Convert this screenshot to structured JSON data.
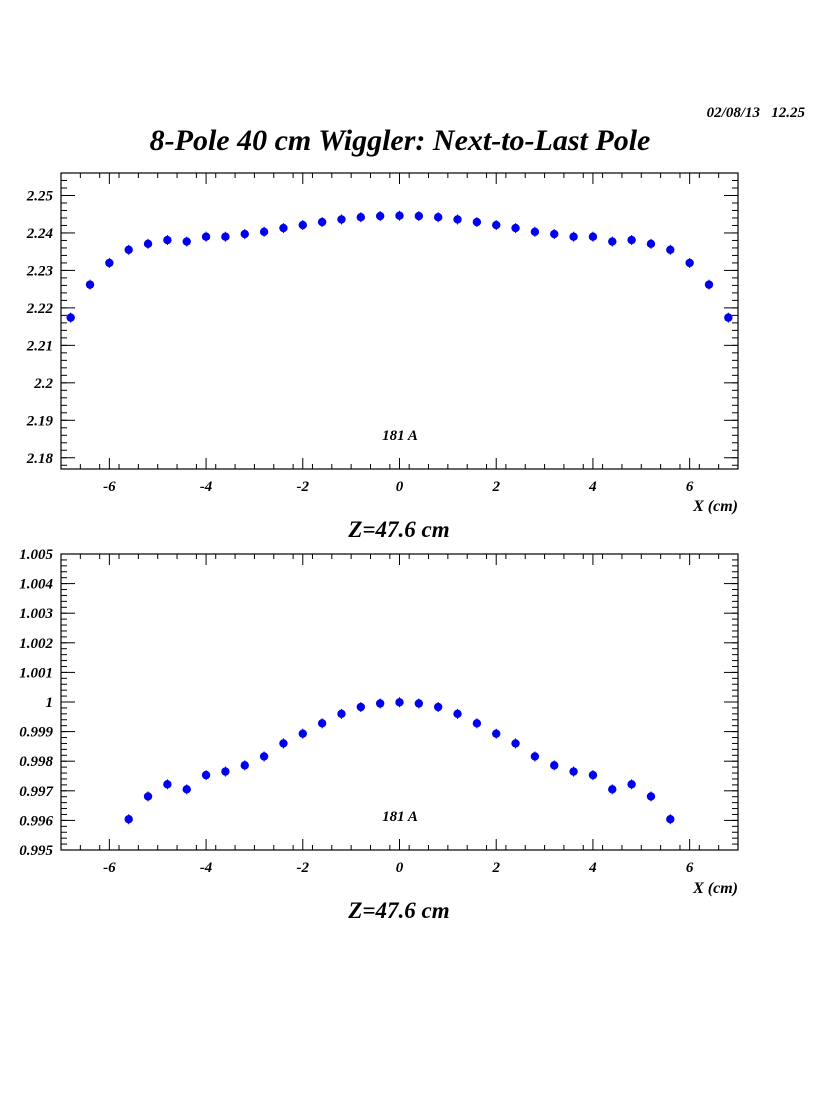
{
  "header": {
    "date": "02/08/13   12.25",
    "title": "8-Pole 40 cm Wiggler: Next-to-Last Pole"
  },
  "colors": {
    "marker": "#0000ee",
    "axes": "#000000"
  },
  "chart_data": [
    {
      "type": "scatter",
      "title": "",
      "xlabel": "X (cm)",
      "ylabel": "",
      "caption": "Z=47.6 cm",
      "annotation": "181 A",
      "xlim": [
        -7,
        7
      ],
      "ylim": [
        2.177,
        2.256
      ],
      "x_ticks": [
        -6,
        -4,
        -2,
        0,
        2,
        4,
        6
      ],
      "x_tick_labels": [
        "-6",
        "-4",
        "-2",
        "0",
        "2",
        "4",
        "6"
      ],
      "y_ticks": [
        2.18,
        2.19,
        2.2,
        2.21,
        2.22,
        2.23,
        2.24,
        2.25
      ],
      "y_tick_labels": [
        "2.18",
        "2.19",
        "2.2",
        "2.21",
        "2.22",
        "2.23",
        "2.24",
        "2.25"
      ],
      "series": [
        {
          "x": [
            -6.8,
            -6.4,
            -6.0,
            -5.6,
            -5.2,
            -4.8,
            -4.4,
            -4.0,
            -3.6,
            -3.2,
            -2.8,
            -2.4,
            -2.0,
            -1.6,
            -1.2,
            -0.8,
            -0.4,
            0.0,
            0.4,
            0.8,
            1.2,
            1.6,
            2.0,
            2.4,
            2.8,
            3.2,
            3.6,
            4.0,
            4.4,
            4.8,
            5.2,
            5.6,
            6.0,
            6.4,
            6.8
          ],
          "y": [
            2.2174,
            2.2262,
            2.232,
            2.2355,
            2.2371,
            2.2381,
            2.2377,
            2.239,
            2.239,
            2.2397,
            2.2403,
            2.2413,
            2.2421,
            2.2429,
            2.2436,
            2.2442,
            2.2445,
            2.2446,
            2.2445,
            2.2442,
            2.2436,
            2.2429,
            2.2421,
            2.2413,
            2.2403,
            2.2397,
            2.239,
            2.239,
            2.2377,
            2.2381,
            2.2371,
            2.2355,
            2.232,
            2.2262,
            2.2174
          ]
        }
      ]
    },
    {
      "type": "scatter",
      "title": "",
      "xlabel": "X (cm)",
      "ylabel": "",
      "caption": "Z=47.6 cm",
      "annotation": "181 A",
      "xlim": [
        -7,
        7
      ],
      "ylim": [
        0.995,
        1.005
      ],
      "x_ticks": [
        -6,
        -4,
        -2,
        0,
        2,
        4,
        6
      ],
      "x_tick_labels": [
        "-6",
        "-4",
        "-2",
        "0",
        "2",
        "4",
        "6"
      ],
      "y_ticks": [
        0.995,
        0.996,
        0.997,
        0.998,
        0.999,
        1.0,
        1.001,
        1.002,
        1.003,
        1.004,
        1.005
      ],
      "y_tick_labels": [
        "0.995",
        "0.996",
        "0.997",
        "0.998",
        "0.999",
        "1",
        "1.001",
        "1.002",
        "1.003",
        "1.004",
        "1.005"
      ],
      "series": [
        {
          "x": [
            -5.6,
            -5.2,
            -4.8,
            -4.4,
            -4.0,
            -3.6,
            -3.2,
            -2.8,
            -2.4,
            -2.0,
            -1.6,
            -1.2,
            -0.8,
            -0.4,
            0.0,
            0.4,
            0.8,
            1.2,
            1.6,
            2.0,
            2.4,
            2.8,
            3.2,
            3.6,
            4.0,
            4.4,
            4.8,
            5.2,
            5.6
          ],
          "y": [
            0.99604,
            0.99681,
            0.99722,
            0.99705,
            0.99753,
            0.99765,
            0.99786,
            0.99816,
            0.9986,
            0.99893,
            0.99928,
            0.9996,
            0.99983,
            0.99995,
            0.99999,
            0.99995,
            0.99983,
            0.9996,
            0.99928,
            0.99893,
            0.9986,
            0.99816,
            0.99786,
            0.99765,
            0.99753,
            0.99705,
            0.99722,
            0.99681,
            0.99604
          ]
        }
      ]
    }
  ]
}
